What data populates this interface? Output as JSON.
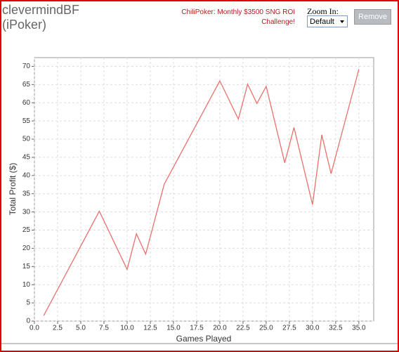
{
  "header": {
    "title": "clevermindBF (iPoker)",
    "link": "ChiliPoker: Monthly $3500 SNG ROI Challenge!",
    "zoom_label": "Zoom In:",
    "zoom_option": "Default",
    "button": "Remove"
  },
  "chart_data": {
    "type": "line",
    "color": "#e8716e",
    "grid": true,
    "x_label": "Games Played",
    "y_label": "Total Profit ($)",
    "x": [
      1,
      7,
      10,
      11,
      12,
      14,
      20,
      22,
      23,
      24,
      25,
      27,
      28,
      30,
      31,
      32,
      35
    ],
    "values": [
      1.5,
      30.2,
      14.2,
      24,
      18.4,
      37.6,
      66,
      55.5,
      65.1,
      59.8,
      64.5,
      43.5,
      53.2,
      32,
      51.2,
      40.5,
      69.2
    ],
    "xlim": [
      0,
      36.6
    ],
    "ylim": [
      0,
      72.4
    ],
    "xticks": [
      {
        "value": 0,
        "label": "0.0"
      },
      {
        "value": 2.5,
        "label": "2.5"
      },
      {
        "value": 5,
        "label": "5.0"
      },
      {
        "value": 7.5,
        "label": "7.5"
      },
      {
        "value": 10,
        "label": "10.0"
      },
      {
        "value": 12.5,
        "label": "12.5"
      },
      {
        "value": 15,
        "label": "15.0"
      },
      {
        "value": 17.5,
        "label": "17.5"
      },
      {
        "value": 20,
        "label": "20.0"
      },
      {
        "value": 22.5,
        "label": "22.5"
      },
      {
        "value": 25,
        "label": "25.0"
      },
      {
        "value": 27.5,
        "label": "27.5"
      },
      {
        "value": 30,
        "label": "30.0"
      },
      {
        "value": 32.5,
        "label": "32.5"
      },
      {
        "value": 35,
        "label": "35.0"
      }
    ],
    "yticks": [
      0,
      5,
      10,
      15,
      20,
      25,
      30,
      35,
      40,
      45,
      50,
      55,
      60,
      65,
      70
    ]
  }
}
